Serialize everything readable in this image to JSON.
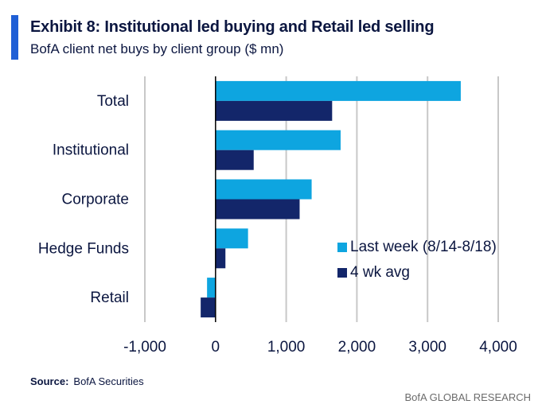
{
  "header": {
    "title": "Exhibit 8: Institutional led buying and Retail led selling",
    "subtitle": "BofA client net buys by client group ($ mn)"
  },
  "colors": {
    "accent": "#1f5fd6",
    "last_week": "#0ea5e0",
    "avg": "#13266a",
    "grid": "#c8c8c8",
    "text": "#0b1640"
  },
  "chart_data": {
    "type": "bar",
    "orientation": "horizontal",
    "categories": [
      "Total",
      "Institutional",
      "Corporate",
      "Hedge Funds",
      "Retail"
    ],
    "series": [
      {
        "name": "Last week (8/14-8/18)",
        "values": [
          3470,
          1770,
          1360,
          460,
          -120
        ]
      },
      {
        "name": "4 wk avg",
        "values": [
          1650,
          540,
          1190,
          140,
          -210
        ]
      }
    ],
    "xlim": [
      -1000,
      4000
    ],
    "xticks": [
      "-1,000",
      "0",
      "1,000",
      "2,000",
      "3,000",
      "4,000"
    ],
    "xtick_values": [
      -1000,
      0,
      1000,
      2000,
      3000,
      4000
    ],
    "grid": true,
    "legend": "right-middle"
  },
  "footer": {
    "source_label": "Source:",
    "source_text": "BofA Securities",
    "brand": "BofA GLOBAL RESEARCH"
  }
}
